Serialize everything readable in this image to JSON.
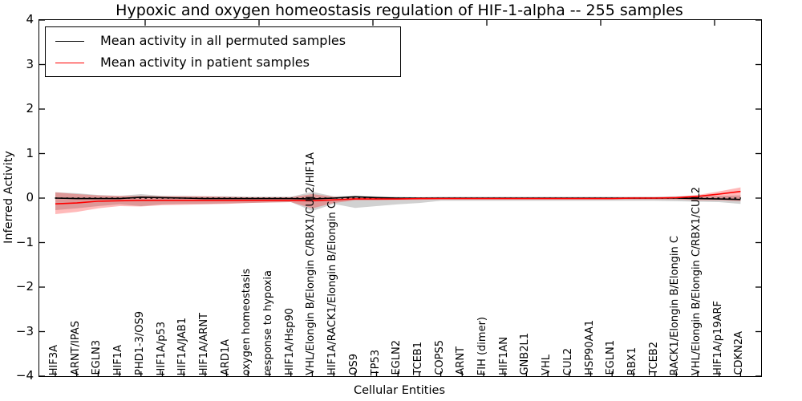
{
  "title": "Hypoxic and oxygen homeostasis regulation of HIF-1-alpha -- 255 samples",
  "axes": {
    "xlabel": "Cellular Entities",
    "ylabel": "Inferred Activity",
    "yticks": [
      "4",
      "3",
      "2",
      "1",
      "0",
      "−1",
      "−2",
      "−3",
      "−4"
    ],
    "ytick_values": [
      4,
      3,
      2,
      1,
      0,
      -1,
      -2,
      -3,
      -4
    ]
  },
  "colors": {
    "permuted_line": "#000000",
    "patient_line": "#ff0000",
    "permuted_band": "rgba(0,0,0,0.18)",
    "patient_band": "rgba(255,0,0,0.27)",
    "zero_line": "#000000",
    "background": "#ffffff",
    "text": "#000000"
  },
  "legend": {
    "items": [
      {
        "label": "Mean activity in all permuted samples",
        "color": "#000000"
      },
      {
        "label": "Mean activity in patient samples",
        "color": "#ff0000"
      }
    ]
  },
  "chart_data": {
    "type": "line",
    "title": "Hypoxic and oxygen homeostasis regulation of HIF-1-alpha -- 255 samples",
    "xlabel": "Cellular Entities",
    "ylabel": "Inferred Activity",
    "ylim": [
      -4,
      4
    ],
    "grid": false,
    "legend_position": "upper left",
    "zero_reference_line": true,
    "categories": [
      "HIF3A",
      "ARNT/IPAS",
      "EGLN3",
      "HIF1A",
      "PHD1-3/OS9",
      "HIF1A/p53",
      "HIF1A/JAB1",
      "HIF1A/ARNT",
      "ARD1A",
      "oxygen homeostasis",
      "response to hypoxia",
      "HIF1A/Hsp90",
      "VHL/Elongin B/Elongin C/RBX1/CUL2/HIF1A",
      "HIF1A/RACK1/Elongin B/Elongin C",
      "OS9",
      "TP53",
      "EGLN2",
      "TCEB1",
      "COPS5",
      "ARNT",
      "FIH (dimer)",
      "HIF1AN",
      "GNB2L1",
      "VHL",
      "CUL2",
      "HSP90AA1",
      "EGLN1",
      "RBX1",
      "TCEB2",
      "RACK1/Elongin B/Elongin C",
      "VHL/Elongin B/Elongin C/RBX1/CUL2",
      "HIF1A/p19ARF",
      "CDKN2A"
    ],
    "series": [
      {
        "name": "Mean activity in all permuted samples",
        "color": "#000000",
        "band_color": "rgba(0,0,0,0.18)",
        "values": [
          0.0,
          -0.01,
          -0.01,
          -0.01,
          0.02,
          0.01,
          0.0,
          -0.01,
          -0.01,
          -0.01,
          -0.01,
          -0.01,
          -0.02,
          0.0,
          0.03,
          0.01,
          0.0,
          0.0,
          0.0,
          0.0,
          0.0,
          0.0,
          0.0,
          0.0,
          0.0,
          0.0,
          0.0,
          0.0,
          0.0,
          0.0,
          -0.01,
          -0.02,
          -0.03
        ],
        "band_upper": [
          0.13,
          0.11,
          0.07,
          0.05,
          0.09,
          0.05,
          0.05,
          0.04,
          0.04,
          0.03,
          0.03,
          0.03,
          0.14,
          0.04,
          0.05,
          0.04,
          0.03,
          0.02,
          0.03,
          0.03,
          0.03,
          0.03,
          0.03,
          0.03,
          0.03,
          0.03,
          0.03,
          0.03,
          0.03,
          0.04,
          0.05,
          0.05,
          0.06
        ],
        "band_lower": [
          -0.27,
          -0.23,
          -0.18,
          -0.14,
          -0.18,
          -0.14,
          -0.13,
          -0.13,
          -0.12,
          -0.11,
          -0.1,
          -0.09,
          -0.29,
          -0.13,
          -0.22,
          -0.18,
          -0.14,
          -0.11,
          -0.06,
          -0.06,
          -0.06,
          -0.06,
          -0.06,
          -0.06,
          -0.06,
          -0.06,
          -0.06,
          -0.06,
          -0.06,
          -0.07,
          -0.08,
          -0.09,
          -0.13
        ]
      },
      {
        "name": "Mean activity in patient samples",
        "color": "#ff0000",
        "band_color": "rgba(255,0,0,0.27)",
        "values": [
          -0.13,
          -0.11,
          -0.07,
          -0.06,
          -0.05,
          -0.05,
          -0.05,
          -0.05,
          -0.05,
          -0.05,
          -0.05,
          -0.05,
          -0.06,
          -0.04,
          -0.02,
          -0.02,
          -0.02,
          -0.01,
          -0.01,
          -0.01,
          -0.01,
          -0.01,
          -0.01,
          -0.01,
          -0.01,
          -0.01,
          -0.01,
          0.0,
          0.0,
          0.01,
          0.04,
          0.09,
          0.15
        ],
        "band_upper": [
          0.13,
          0.09,
          0.06,
          0.05,
          0.05,
          0.04,
          0.04,
          0.04,
          0.03,
          0.02,
          0.02,
          0.02,
          0.09,
          0.03,
          0.01,
          0.01,
          0.0,
          0.0,
          0.01,
          0.01,
          0.01,
          0.01,
          0.01,
          0.01,
          0.01,
          0.01,
          0.01,
          0.02,
          0.02,
          0.03,
          0.07,
          0.15,
          0.24
        ],
        "band_lower": [
          -0.36,
          -0.31,
          -0.23,
          -0.18,
          -0.19,
          -0.16,
          -0.15,
          -0.14,
          -0.13,
          -0.11,
          -0.1,
          -0.09,
          -0.23,
          -0.11,
          -0.05,
          -0.05,
          -0.04,
          -0.04,
          -0.03,
          -0.03,
          -0.03,
          -0.03,
          -0.03,
          -0.03,
          -0.03,
          -0.03,
          -0.03,
          -0.03,
          -0.03,
          -0.03,
          -0.05,
          -0.05,
          -0.07
        ]
      }
    ]
  }
}
